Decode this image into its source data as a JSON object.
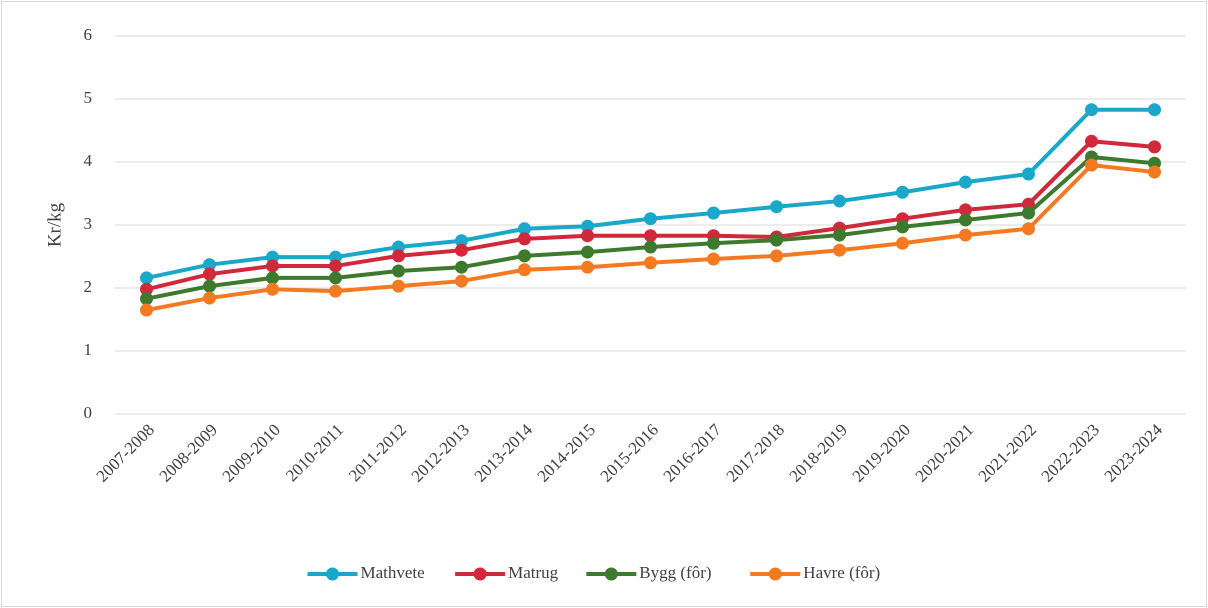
{
  "chart_data": {
    "type": "line",
    "y_label": "Kr/kg",
    "categories": [
      "2007-2008",
      "2008-2009",
      "2009-2010",
      "2010-2011",
      "2011-2012",
      "2012-2013",
      "2013-2014",
      "2014-2015",
      "2015-2016",
      "2016-2017",
      "2017-2018",
      "2018-2019",
      "2019-2020",
      "2020-2021",
      "2021-2022",
      "2022-2023",
      "2023-2024"
    ],
    "series": [
      {
        "name": "Mathvete",
        "color": "#1aa7c9",
        "values": [
          2.16,
          2.37,
          2.49,
          2.49,
          2.65,
          2.75,
          2.94,
          2.98,
          3.1,
          3.19,
          3.29,
          3.38,
          3.52,
          3.68,
          3.81,
          4.83,
          4.83
        ]
      },
      {
        "name": "Matrug",
        "color": "#d0293a",
        "values": [
          1.98,
          2.22,
          2.35,
          2.35,
          2.51,
          2.6,
          2.78,
          2.83,
          2.83,
          2.83,
          2.81,
          2.95,
          3.1,
          3.24,
          3.33,
          4.33,
          4.24
        ]
      },
      {
        "name": "Bygg (fôr)",
        "color": "#3e7a2e",
        "values": [
          1.83,
          2.03,
          2.16,
          2.16,
          2.27,
          2.33,
          2.51,
          2.57,
          2.65,
          2.71,
          2.76,
          2.84,
          2.97,
          3.08,
          3.19,
          4.08,
          3.98
        ]
      },
      {
        "name": "Havre (fôr)",
        "color": "#f47a22",
        "values": [
          1.65,
          1.84,
          1.98,
          1.95,
          2.03,
          2.11,
          2.29,
          2.33,
          2.4,
          2.46,
          2.51,
          2.6,
          2.71,
          2.84,
          2.94,
          3.95,
          3.84
        ]
      }
    ],
    "ylim": [
      0,
      6
    ],
    "yticks": [
      0,
      1,
      2,
      3,
      4,
      5,
      6
    ],
    "grid": true,
    "legend": "bottom"
  }
}
